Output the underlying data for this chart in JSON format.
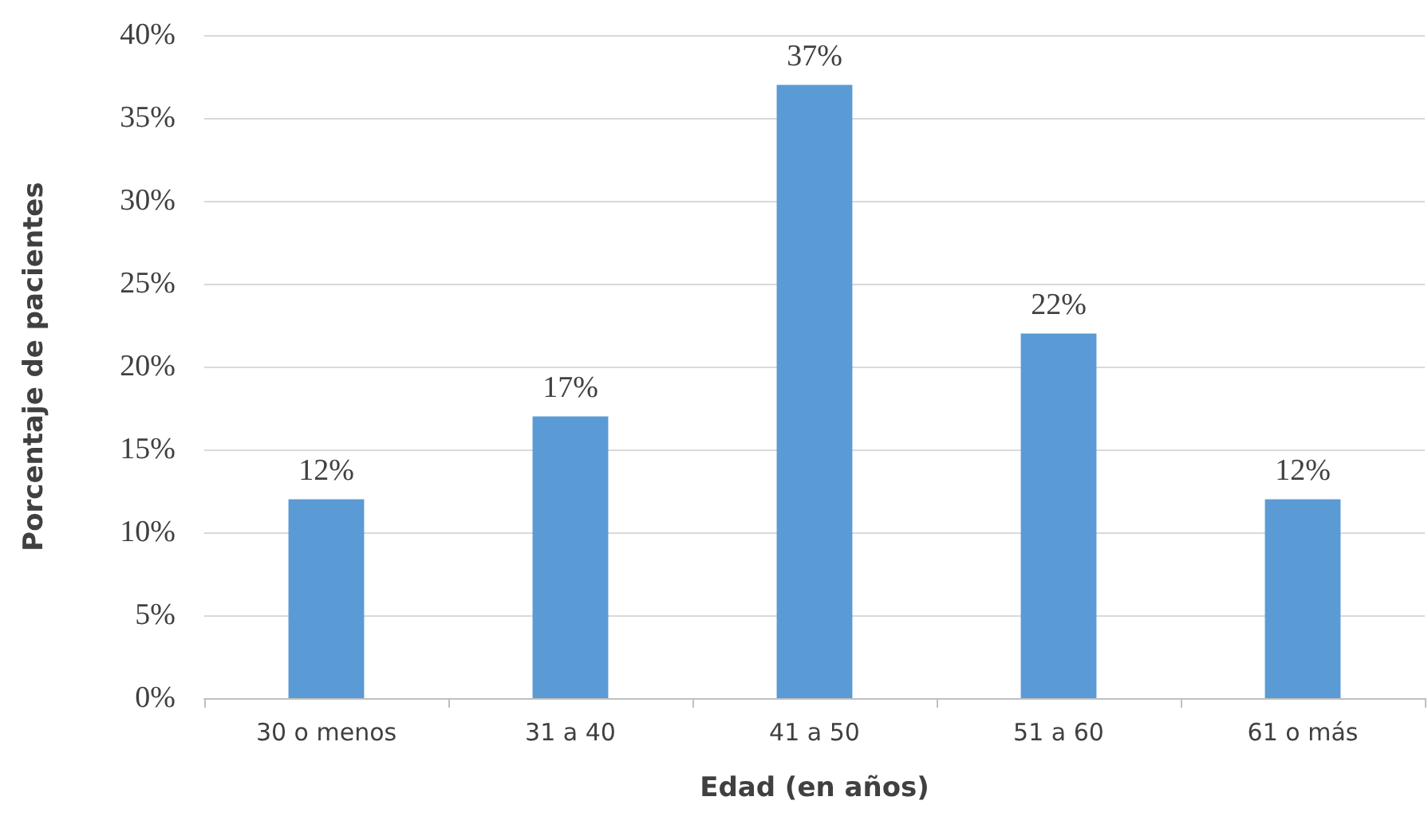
{
  "chart_data": {
    "type": "bar",
    "xlabel": "Edad (en años)",
    "ylabel": "Porcentaje de pacientes",
    "categories": [
      "30 o menos",
      "31 a 40",
      "41 a 50",
      "51 a 60",
      "61 o más"
    ],
    "values": [
      12,
      17,
      37,
      22,
      12
    ],
    "color": "#5b9bd5",
    "value_labels": [
      "12%",
      "17%",
      "37%",
      "22%",
      "12%"
    ],
    "ylim": [
      0,
      40
    ],
    "yticks": [
      {
        "value": 0,
        "label": "0%"
      },
      {
        "value": 5,
        "label": "5%"
      },
      {
        "value": 10,
        "label": "10%"
      },
      {
        "value": 15,
        "label": "15%"
      },
      {
        "value": 20,
        "label": "20%"
      },
      {
        "value": 25,
        "label": "25%"
      },
      {
        "value": 30,
        "label": "30%"
      },
      {
        "value": 35,
        "label": "35%"
      },
      {
        "value": 40,
        "label": "40%"
      }
    ],
    "grid": true
  }
}
